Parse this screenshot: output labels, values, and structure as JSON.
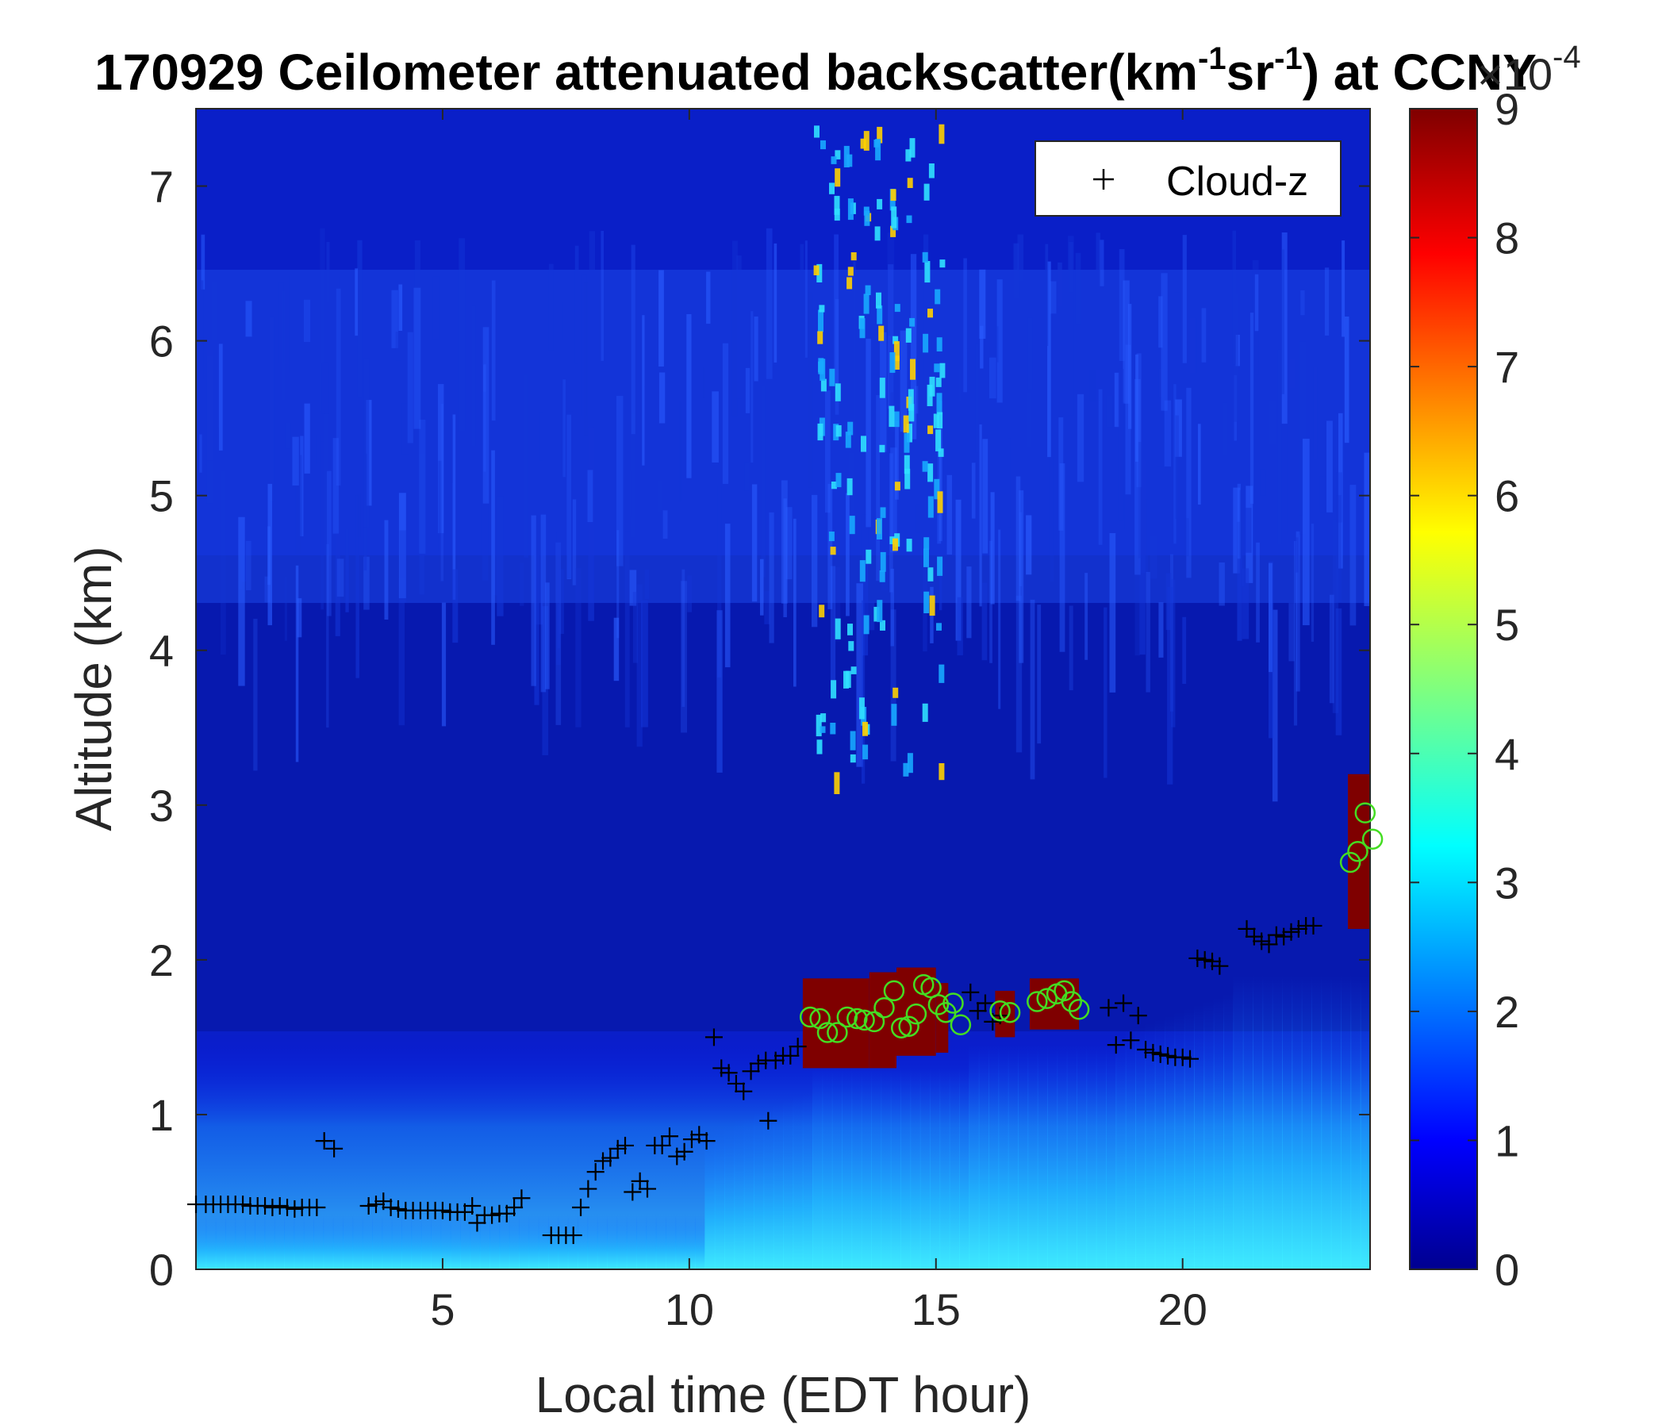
{
  "chart_data": {
    "type": "heatmap",
    "title_main": "170929 Ceilometer attenuated backscatter(km",
    "title_sup1": "-1",
    "title_mid": "sr",
    "title_sup2": "-1",
    "title_tail": ") at CCNY",
    "xlabel": "Local time (EDT hour)",
    "ylabel": "Altitude (km)",
    "xlim": [
      0,
      23.8
    ],
    "ylim": [
      0,
      7.5
    ],
    "x_ticks": [
      "5",
      "10",
      "15",
      "20"
    ],
    "y_ticks": [
      "0",
      "1",
      "2",
      "3",
      "4",
      "5",
      "6",
      "7"
    ],
    "colorbar": {
      "range": [
        0,
        9
      ],
      "ticks": [
        "0",
        "1",
        "2",
        "3",
        "4",
        "5",
        "6",
        "7",
        "8",
        "9"
      ],
      "exponent_base": "×10",
      "exponent": "-4",
      "colormap": "jet"
    },
    "legend": {
      "label": "Cloud-z",
      "marker": "+",
      "position": "top-right"
    },
    "series": [
      {
        "name": "Cloud-z",
        "marker": "+",
        "color": "#000000",
        "points": [
          [
            0.0,
            0.42
          ],
          [
            0.2,
            0.42
          ],
          [
            0.35,
            0.42
          ],
          [
            0.5,
            0.42
          ],
          [
            0.65,
            0.42
          ],
          [
            0.8,
            0.42
          ],
          [
            0.95,
            0.42
          ],
          [
            1.1,
            0.41
          ],
          [
            1.25,
            0.41
          ],
          [
            1.4,
            0.41
          ],
          [
            1.55,
            0.4
          ],
          [
            1.7,
            0.41
          ],
          [
            1.85,
            0.4
          ],
          [
            2.0,
            0.39
          ],
          [
            2.15,
            0.4
          ],
          [
            2.3,
            0.4
          ],
          [
            2.45,
            0.4
          ],
          [
            2.6,
            0.83
          ],
          [
            2.8,
            0.78
          ],
          [
            3.5,
            0.41
          ],
          [
            3.65,
            0.42
          ],
          [
            3.8,
            0.44
          ],
          [
            3.95,
            0.4
          ],
          [
            4.1,
            0.39
          ],
          [
            4.25,
            0.38
          ],
          [
            4.4,
            0.38
          ],
          [
            4.55,
            0.38
          ],
          [
            4.7,
            0.38
          ],
          [
            4.85,
            0.38
          ],
          [
            5.0,
            0.38
          ],
          [
            5.15,
            0.37
          ],
          [
            5.3,
            0.37
          ],
          [
            5.45,
            0.37
          ],
          [
            5.6,
            0.41
          ],
          [
            5.7,
            0.3
          ],
          [
            5.85,
            0.35
          ],
          [
            6.0,
            0.35
          ],
          [
            6.15,
            0.36
          ],
          [
            6.3,
            0.36
          ],
          [
            6.45,
            0.4
          ],
          [
            6.6,
            0.46
          ],
          [
            7.2,
            0.22
          ],
          [
            7.35,
            0.22
          ],
          [
            7.5,
            0.22
          ],
          [
            7.65,
            0.22
          ],
          [
            7.8,
            0.4
          ],
          [
            7.95,
            0.52
          ],
          [
            8.1,
            0.63
          ],
          [
            8.25,
            0.7
          ],
          [
            8.4,
            0.72
          ],
          [
            8.55,
            0.78
          ],
          [
            8.7,
            0.8
          ],
          [
            8.85,
            0.5
          ],
          [
            9.0,
            0.57
          ],
          [
            9.15,
            0.52
          ],
          [
            9.3,
            0.8
          ],
          [
            9.45,
            0.8
          ],
          [
            9.6,
            0.86
          ],
          [
            9.75,
            0.73
          ],
          [
            9.9,
            0.76
          ],
          [
            10.05,
            0.84
          ],
          [
            10.2,
            0.87
          ],
          [
            10.35,
            0.83
          ],
          [
            10.5,
            1.5
          ],
          [
            10.65,
            1.3
          ],
          [
            10.8,
            1.27
          ],
          [
            10.95,
            1.2
          ],
          [
            11.1,
            1.15
          ],
          [
            11.25,
            1.28
          ],
          [
            11.4,
            1.33
          ],
          [
            11.55,
            1.35
          ],
          [
            11.6,
            0.96
          ],
          [
            11.75,
            1.35
          ],
          [
            11.9,
            1.38
          ],
          [
            12.05,
            1.38
          ],
          [
            12.2,
            1.44
          ],
          [
            15.7,
            1.79
          ],
          [
            15.85,
            1.67
          ],
          [
            16.0,
            1.72
          ],
          [
            16.15,
            1.6
          ],
          [
            16.3,
            1.64
          ],
          [
            18.5,
            1.69
          ],
          [
            18.65,
            1.45
          ],
          [
            18.8,
            1.72
          ],
          [
            18.95,
            1.48
          ],
          [
            19.1,
            1.64
          ],
          [
            19.25,
            1.42
          ],
          [
            19.4,
            1.4
          ],
          [
            19.55,
            1.39
          ],
          [
            19.7,
            1.38
          ],
          [
            19.85,
            1.37
          ],
          [
            20.0,
            1.37
          ],
          [
            20.15,
            1.36
          ],
          [
            20.3,
            2.01
          ],
          [
            20.45,
            2.0
          ],
          [
            20.6,
            1.99
          ],
          [
            20.75,
            1.96
          ],
          [
            21.3,
            2.2
          ],
          [
            21.45,
            2.15
          ],
          [
            21.6,
            2.12
          ],
          [
            21.75,
            2.1
          ],
          [
            21.9,
            2.16
          ],
          [
            22.05,
            2.15
          ],
          [
            22.2,
            2.18
          ],
          [
            22.35,
            2.2
          ],
          [
            22.5,
            2.22
          ],
          [
            22.65,
            2.22
          ]
        ]
      },
      {
        "name": "",
        "marker": "o",
        "color": "#44dd22",
        "points": [
          [
            12.45,
            1.63
          ],
          [
            12.65,
            1.62
          ],
          [
            12.8,
            1.53
          ],
          [
            13.0,
            1.53
          ],
          [
            13.2,
            1.63
          ],
          [
            13.4,
            1.62
          ],
          [
            13.55,
            1.61
          ],
          [
            13.75,
            1.6
          ],
          [
            13.95,
            1.69
          ],
          [
            14.15,
            1.8
          ],
          [
            14.3,
            1.56
          ],
          [
            14.45,
            1.57
          ],
          [
            14.6,
            1.65
          ],
          [
            14.75,
            1.84
          ],
          [
            14.9,
            1.82
          ],
          [
            15.05,
            1.71
          ],
          [
            15.2,
            1.66
          ],
          [
            15.35,
            1.72
          ],
          [
            15.5,
            1.58
          ],
          [
            16.3,
            1.67
          ],
          [
            16.5,
            1.66
          ],
          [
            17.05,
            1.73
          ],
          [
            17.25,
            1.75
          ],
          [
            17.45,
            1.78
          ],
          [
            17.6,
            1.8
          ],
          [
            17.75,
            1.73
          ],
          [
            17.9,
            1.68
          ],
          [
            23.4,
            2.63
          ],
          [
            23.55,
            2.7
          ],
          [
            23.7,
            2.95
          ],
          [
            23.85,
            2.78
          ]
        ]
      }
    ]
  }
}
